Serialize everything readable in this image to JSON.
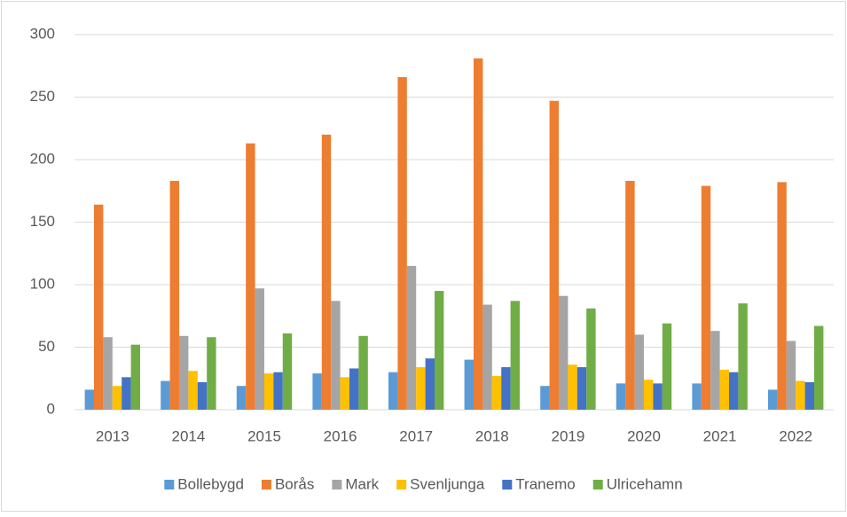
{
  "chart_data": {
    "type": "bar",
    "categories": [
      "2013",
      "2014",
      "2015",
      "2016",
      "2017",
      "2018",
      "2019",
      "2020",
      "2021",
      "2022"
    ],
    "series": [
      {
        "name": "Bollebygd",
        "color": "#5b9bd5",
        "values": [
          16,
          23,
          19,
          29,
          30,
          40,
          19,
          21,
          21,
          16
        ]
      },
      {
        "name": "Borås",
        "color": "#ed7d31",
        "values": [
          164,
          183,
          213,
          220,
          266,
          281,
          247,
          183,
          179,
          182
        ]
      },
      {
        "name": "Mark",
        "color": "#a5a5a5",
        "values": [
          58,
          59,
          97,
          87,
          115,
          84,
          91,
          60,
          63,
          55
        ]
      },
      {
        "name": "Svenljunga",
        "color": "#ffc000",
        "values": [
          19,
          31,
          29,
          26,
          34,
          27,
          36,
          24,
          32,
          23
        ]
      },
      {
        "name": "Tranemo",
        "color": "#4472c4",
        "values": [
          26,
          22,
          30,
          33,
          41,
          34,
          34,
          21,
          30,
          22
        ]
      },
      {
        "name": "Ulricehamn",
        "color": "#70ad47",
        "values": [
          52,
          58,
          61,
          59,
          95,
          87,
          81,
          69,
          85,
          67
        ]
      }
    ],
    "ylim": [
      0,
      300
    ],
    "yticks": [
      0,
      50,
      100,
      150,
      200,
      250,
      300
    ],
    "grid": true,
    "legend": "bottom"
  }
}
